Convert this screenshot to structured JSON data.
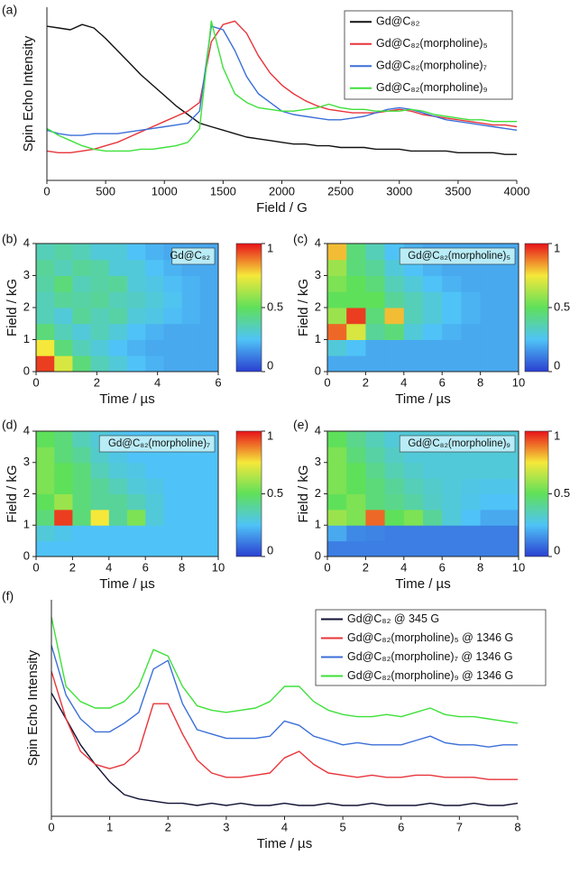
{
  "chart_data": [
    {
      "type": "line",
      "label": "(a)",
      "x_label": "Field / G",
      "y_label": "Spin Echo Intensity",
      "x": [
        0,
        100,
        200,
        300,
        400,
        500,
        600,
        700,
        800,
        900,
        1000,
        1100,
        1200,
        1300,
        1400,
        1500,
        1600,
        1700,
        1800,
        1900,
        2000,
        2100,
        2200,
        2300,
        2400,
        2500,
        2600,
        2700,
        2800,
        2900,
        3000,
        3100,
        3200,
        3300,
        3400,
        3500,
        3600,
        3700,
        3800,
        3900,
        4000
      ],
      "xlim": [
        0,
        4000
      ],
      "xticks": [
        0,
        500,
        1000,
        1500,
        2000,
        2500,
        3000,
        3500,
        4000
      ],
      "ylim": [
        0,
        1
      ],
      "series": [
        {
          "name": "Gd@C₈₂",
          "color": "#111111",
          "values": [
            0.89,
            0.88,
            0.87,
            0.9,
            0.88,
            0.82,
            0.75,
            0.68,
            0.61,
            0.55,
            0.49,
            0.43,
            0.38,
            0.33,
            0.31,
            0.29,
            0.27,
            0.25,
            0.24,
            0.23,
            0.22,
            0.21,
            0.21,
            0.2,
            0.2,
            0.19,
            0.19,
            0.19,
            0.18,
            0.18,
            0.18,
            0.17,
            0.17,
            0.17,
            0.17,
            0.16,
            0.16,
            0.16,
            0.16,
            0.15,
            0.15
          ]
        },
        {
          "name": "Gd@C₈₂(morpholine)₅",
          "color": "#e8343a",
          "values": [
            0.17,
            0.16,
            0.16,
            0.17,
            0.18,
            0.2,
            0.22,
            0.25,
            0.28,
            0.31,
            0.34,
            0.37,
            0.4,
            0.45,
            0.8,
            0.9,
            0.92,
            0.85,
            0.72,
            0.62,
            0.55,
            0.5,
            0.46,
            0.43,
            0.41,
            0.4,
            0.39,
            0.39,
            0.39,
            0.4,
            0.41,
            0.4,
            0.38,
            0.37,
            0.36,
            0.35,
            0.34,
            0.33,
            0.32,
            0.32,
            0.31
          ]
        },
        {
          "name": "Gd@C₈₂(morpholine)₇",
          "color": "#3b6fd8",
          "values": [
            0.29,
            0.27,
            0.26,
            0.26,
            0.27,
            0.27,
            0.27,
            0.28,
            0.29,
            0.3,
            0.31,
            0.32,
            0.33,
            0.4,
            0.89,
            0.87,
            0.75,
            0.6,
            0.5,
            0.45,
            0.4,
            0.38,
            0.37,
            0.36,
            0.35,
            0.35,
            0.36,
            0.37,
            0.39,
            0.41,
            0.42,
            0.41,
            0.39,
            0.37,
            0.35,
            0.34,
            0.33,
            0.32,
            0.31,
            0.3,
            0.29
          ]
        },
        {
          "name": "Gd@C₈₂(morpholine)₉",
          "color": "#3ee03a",
          "values": [
            0.3,
            0.26,
            0.23,
            0.2,
            0.18,
            0.17,
            0.17,
            0.17,
            0.18,
            0.18,
            0.19,
            0.2,
            0.22,
            0.3,
            0.92,
            0.65,
            0.5,
            0.45,
            0.42,
            0.41,
            0.4,
            0.4,
            0.41,
            0.42,
            0.44,
            0.42,
            0.41,
            0.41,
            0.4,
            0.4,
            0.4,
            0.41,
            0.4,
            0.38,
            0.37,
            0.36,
            0.35,
            0.35,
            0.34,
            0.34,
            0.34
          ]
        }
      ]
    },
    {
      "type": "heatmap",
      "label": "(b)",
      "title": "Gd@C₈₂",
      "x_label": "Time / µs",
      "y_label": "Field / kG",
      "xlim": [
        0,
        6
      ],
      "xticks": [
        0,
        2,
        4,
        6
      ],
      "ylim": [
        0,
        4
      ],
      "yticks": [
        0,
        1,
        2,
        3,
        4
      ],
      "clim": [
        0,
        1
      ],
      "cticks": [
        0,
        0.5,
        1
      ],
      "colormap": [
        "#2a3fd0",
        "#4fc3f7",
        "#5fe05a",
        "#f5e83a",
        "#e8121a"
      ],
      "z": [
        [
          0.95,
          0.7,
          0.45,
          0.35,
          0.3,
          0.25,
          0.22,
          0.2,
          0.2,
          0.2
        ],
        [
          0.75,
          0.45,
          0.35,
          0.3,
          0.25,
          0.22,
          0.2,
          0.2,
          0.2,
          0.2
        ],
        [
          0.45,
          0.35,
          0.3,
          0.35,
          0.3,
          0.25,
          0.22,
          0.2,
          0.2,
          0.2
        ],
        [
          0.35,
          0.3,
          0.4,
          0.35,
          0.38,
          0.3,
          0.28,
          0.24,
          0.22,
          0.2
        ],
        [
          0.35,
          0.4,
          0.38,
          0.4,
          0.35,
          0.33,
          0.3,
          0.26,
          0.22,
          0.2
        ],
        [
          0.38,
          0.45,
          0.35,
          0.38,
          0.4,
          0.3,
          0.28,
          0.24,
          0.22,
          0.2
        ],
        [
          0.4,
          0.35,
          0.4,
          0.38,
          0.3,
          0.3,
          0.25,
          0.22,
          0.2,
          0.2
        ],
        [
          0.35,
          0.38,
          0.35,
          0.3,
          0.3,
          0.25,
          0.22,
          0.2,
          0.2,
          0.2
        ]
      ]
    },
    {
      "type": "heatmap",
      "label": "(c)",
      "title": "Gd@C₈₂(morpholine)₅",
      "x_label": "Time / µs",
      "y_label": "Field / kG",
      "xlim": [
        0,
        10
      ],
      "xticks": [
        0,
        2,
        4,
        6,
        8,
        10
      ],
      "ylim": [
        0,
        4
      ],
      "yticks": [
        0,
        1,
        2,
        3,
        4
      ],
      "clim": [
        0,
        1
      ],
      "cticks": [
        0,
        0.5,
        1
      ],
      "colormap": [
        "#2a3fd0",
        "#4fc3f7",
        "#5fe05a",
        "#f5e83a",
        "#e8121a"
      ],
      "z": [
        [
          0.2,
          0.2,
          0.2,
          0.2,
          0.2,
          0.2,
          0.2,
          0.2,
          0.2,
          0.2
        ],
        [
          0.3,
          0.25,
          0.2,
          0.2,
          0.2,
          0.2,
          0.2,
          0.2,
          0.2,
          0.2
        ],
        [
          0.9,
          0.7,
          0.4,
          0.45,
          0.3,
          0.25,
          0.22,
          0.2,
          0.2,
          0.2
        ],
        [
          0.6,
          0.95,
          0.45,
          0.8,
          0.35,
          0.3,
          0.25,
          0.22,
          0.2,
          0.2
        ],
        [
          0.5,
          0.5,
          0.5,
          0.4,
          0.35,
          0.3,
          0.25,
          0.22,
          0.2,
          0.2
        ],
        [
          0.55,
          0.5,
          0.45,
          0.35,
          0.3,
          0.25,
          0.22,
          0.2,
          0.2,
          0.2
        ],
        [
          0.6,
          0.45,
          0.4,
          0.3,
          0.25,
          0.22,
          0.2,
          0.2,
          0.2,
          0.2
        ],
        [
          0.8,
          0.45,
          0.35,
          0.25,
          0.22,
          0.2,
          0.2,
          0.2,
          0.2,
          0.2
        ]
      ]
    },
    {
      "type": "heatmap",
      "label": "(d)",
      "title": "Gd@C₈₂(morpholine)₇",
      "x_label": "Time / µs",
      "y_label": "Field / kG",
      "xlim": [
        0,
        10
      ],
      "xticks": [
        0,
        2,
        4,
        6,
        8,
        10
      ],
      "ylim": [
        0,
        4
      ],
      "yticks": [
        0,
        1,
        2,
        3,
        4
      ],
      "clim": [
        0,
        1
      ],
      "cticks": [
        0,
        0.5,
        1
      ],
      "colormap": [
        "#2a3fd0",
        "#4fc3f7",
        "#5fe05a",
        "#f5e83a",
        "#e8121a"
      ],
      "z": [
        [
          0.25,
          0.25,
          0.25,
          0.25,
          0.25,
          0.25,
          0.25,
          0.25,
          0.25,
          0.25
        ],
        [
          0.3,
          0.27,
          0.25,
          0.25,
          0.25,
          0.25,
          0.25,
          0.25,
          0.25,
          0.25
        ],
        [
          0.45,
          0.95,
          0.45,
          0.75,
          0.4,
          0.55,
          0.3,
          0.25,
          0.25,
          0.25
        ],
        [
          0.5,
          0.6,
          0.45,
          0.4,
          0.4,
          0.35,
          0.3,
          0.25,
          0.25,
          0.25
        ],
        [
          0.55,
          0.5,
          0.45,
          0.4,
          0.35,
          0.3,
          0.28,
          0.25,
          0.25,
          0.25
        ],
        [
          0.55,
          0.5,
          0.45,
          0.35,
          0.3,
          0.28,
          0.25,
          0.25,
          0.25,
          0.25
        ],
        [
          0.55,
          0.45,
          0.4,
          0.32,
          0.28,
          0.25,
          0.25,
          0.25,
          0.25,
          0.25
        ],
        [
          0.5,
          0.45,
          0.35,
          0.3,
          0.27,
          0.25,
          0.25,
          0.25,
          0.25,
          0.25
        ]
      ]
    },
    {
      "type": "heatmap",
      "label": "(e)",
      "title": "Gd@C₈₂(morpholine)₉",
      "x_label": "Time / µs",
      "y_label": "Field / kG",
      "xlim": [
        0,
        10
      ],
      "xticks": [
        0,
        2,
        4,
        6,
        8,
        10
      ],
      "ylim": [
        0,
        4
      ],
      "yticks": [
        0,
        1,
        2,
        3,
        4
      ],
      "clim": [
        0,
        1
      ],
      "cticks": [
        0,
        0.5,
        1
      ],
      "colormap": [
        "#2a3fd0",
        "#4fc3f7",
        "#5fe05a",
        "#f5e83a",
        "#e8121a"
      ],
      "z": [
        [
          0.12,
          0.12,
          0.12,
          0.12,
          0.12,
          0.12,
          0.12,
          0.12,
          0.12,
          0.12
        ],
        [
          0.2,
          0.14,
          0.13,
          0.12,
          0.12,
          0.12,
          0.12,
          0.12,
          0.12,
          0.12
        ],
        [
          0.6,
          0.55,
          0.9,
          0.5,
          0.55,
          0.4,
          0.3,
          0.25,
          0.2,
          0.2
        ],
        [
          0.5,
          0.55,
          0.45,
          0.42,
          0.38,
          0.33,
          0.3,
          0.27,
          0.25,
          0.25
        ],
        [
          0.55,
          0.5,
          0.45,
          0.4,
          0.35,
          0.32,
          0.3,
          0.28,
          0.27,
          0.27
        ],
        [
          0.55,
          0.5,
          0.42,
          0.36,
          0.32,
          0.3,
          0.3,
          0.3,
          0.3,
          0.3
        ],
        [
          0.55,
          0.45,
          0.38,
          0.33,
          0.3,
          0.3,
          0.3,
          0.3,
          0.3,
          0.3
        ],
        [
          0.5,
          0.42,
          0.35,
          0.3,
          0.3,
          0.3,
          0.3,
          0.3,
          0.3,
          0.3
        ]
      ]
    },
    {
      "type": "line",
      "label": "(f)",
      "x_label": "Time / µs",
      "y_label": "Spin Echo Intensity",
      "x": [
        0,
        0.25,
        0.5,
        0.75,
        1,
        1.25,
        1.5,
        1.75,
        2,
        2.25,
        2.5,
        2.75,
        3,
        3.25,
        3.5,
        3.75,
        4,
        4.25,
        4.5,
        4.75,
        5,
        5.25,
        5.5,
        5.75,
        6,
        6.25,
        6.5,
        6.75,
        7,
        7.25,
        7.5,
        7.75,
        8
      ],
      "xlim": [
        0,
        8
      ],
      "xticks": [
        0,
        1,
        2,
        3,
        4,
        5,
        6,
        7,
        8
      ],
      "ylim": [
        0,
        1
      ],
      "series": [
        {
          "name": "Gd@C₈₂ @ 345 G",
          "color": "#111133",
          "values": [
            0.57,
            0.45,
            0.33,
            0.24,
            0.16,
            0.1,
            0.08,
            0.07,
            0.06,
            0.06,
            0.05,
            0.06,
            0.05,
            0.06,
            0.05,
            0.05,
            0.06,
            0.05,
            0.05,
            0.06,
            0.05,
            0.05,
            0.06,
            0.05,
            0.05,
            0.05,
            0.06,
            0.05,
            0.05,
            0.06,
            0.05,
            0.05,
            0.06
          ]
        },
        {
          "name": "Gd@C₈₂(morpholine)₅ @ 1346 G",
          "color": "#e8343a",
          "values": [
            0.67,
            0.45,
            0.3,
            0.24,
            0.22,
            0.24,
            0.3,
            0.52,
            0.52,
            0.38,
            0.26,
            0.2,
            0.18,
            0.18,
            0.19,
            0.2,
            0.27,
            0.3,
            0.24,
            0.2,
            0.19,
            0.18,
            0.19,
            0.18,
            0.18,
            0.19,
            0.19,
            0.18,
            0.18,
            0.18,
            0.17,
            0.17,
            0.17
          ]
        },
        {
          "name": "Gd@C₈₂(morpholine)₇ @ 1346 G",
          "color": "#3b6fd8",
          "values": [
            0.79,
            0.56,
            0.45,
            0.39,
            0.39,
            0.43,
            0.48,
            0.68,
            0.72,
            0.52,
            0.4,
            0.38,
            0.36,
            0.36,
            0.36,
            0.37,
            0.44,
            0.42,
            0.37,
            0.35,
            0.33,
            0.34,
            0.33,
            0.33,
            0.33,
            0.35,
            0.37,
            0.34,
            0.33,
            0.33,
            0.32,
            0.33,
            0.33
          ]
        },
        {
          "name": "Gd@C₈₂(morpholine)₉ @ 1346 G",
          "color": "#3ee03a",
          "values": [
            0.92,
            0.6,
            0.53,
            0.5,
            0.5,
            0.53,
            0.6,
            0.77,
            0.74,
            0.6,
            0.51,
            0.49,
            0.48,
            0.49,
            0.5,
            0.53,
            0.6,
            0.6,
            0.53,
            0.49,
            0.47,
            0.46,
            0.46,
            0.47,
            0.46,
            0.48,
            0.5,
            0.47,
            0.46,
            0.46,
            0.45,
            0.44,
            0.43
          ]
        }
      ]
    }
  ]
}
